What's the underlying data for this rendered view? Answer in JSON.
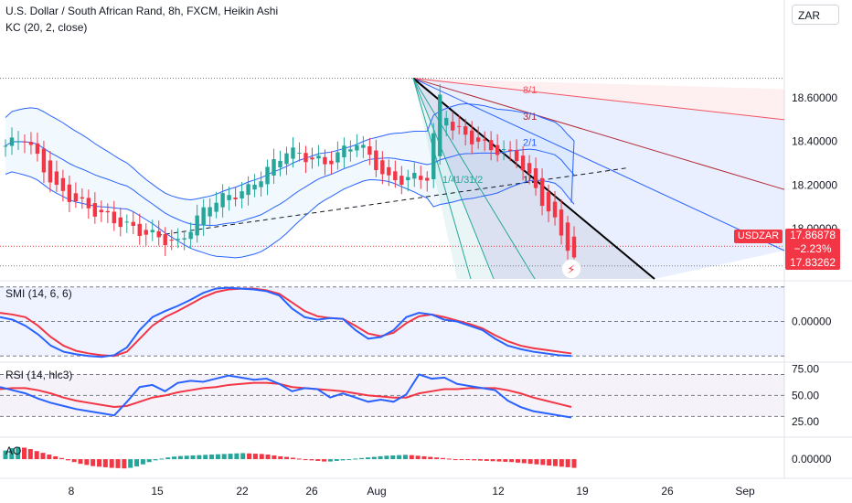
{
  "header": {
    "title": "U.S. Dollar / South African Rand, 8h, FXCM, Heikin Ashi",
    "indicator": "KC (20, 2, close)"
  },
  "currency_button": "ZAR",
  "price_tag": {
    "symbol": "USDZAR",
    "last": "17.86878",
    "change": "−2.23%",
    "low": "17.83262"
  },
  "alert_icon": "lightning-alert-icon",
  "colors": {
    "up": "#26a69a",
    "down": "#f23645",
    "channel": "#2962ff",
    "smi_signal": "#f23645",
    "smi": "#2962ff"
  },
  "chart_data": [
    {
      "type": "candlestick",
      "panel": "price",
      "y_ticks": [
        "18.60000",
        "18.40000",
        "18.20000",
        "18.00000"
      ],
      "y_values": [
        18.6,
        18.4,
        18.2,
        18.0
      ],
      "ylim": [
        17.77,
        18.86
      ],
      "x_ticks": [
        "8",
        "15",
        "22",
        "26",
        "Aug",
        "12",
        "19",
        "26",
        "Sep"
      ],
      "series": [
        {
          "name": "KC (20, 2, close)",
          "kind": "channel"
        }
      ],
      "fan_labels": [
        "8/1",
        "3/1",
        "2/1",
        "1/1",
        "1/2",
        "1/3",
        "1/4"
      ],
      "closes_start": 18.45,
      "closes_end": 17.86878
    },
    {
      "type": "line",
      "panel": "smi",
      "title": "SMI (14, 6, 6)",
      "y_ticks": [
        "0.00000"
      ],
      "y_values": [
        0
      ],
      "ylim": [
        -0.45,
        0.45
      ],
      "series": [
        {
          "name": "SMI",
          "values": [
            0.05,
            0.02,
            -0.05,
            -0.15,
            -0.28,
            -0.35,
            -0.38,
            -0.4,
            -0.41,
            -0.39,
            -0.3,
            -0.1,
            0.05,
            0.12,
            0.18,
            0.25,
            0.33,
            0.38,
            0.39,
            0.38,
            0.37,
            0.35,
            0.3,
            0.15,
            0.05,
            0.02,
            0.04,
            0.03,
            -0.1,
            -0.2,
            -0.18,
            -0.1,
            0.05,
            0.1,
            0.08,
            0.02,
            0.0,
            -0.05,
            -0.1,
            -0.2,
            -0.28,
            -0.32,
            -0.35,
            -0.37,
            -0.39,
            -0.4
          ]
        },
        {
          "name": "Signal",
          "values": [
            0.1,
            0.08,
            0.05,
            -0.05,
            -0.18,
            -0.28,
            -0.34,
            -0.37,
            -0.39,
            -0.4,
            -0.35,
            -0.2,
            -0.05,
            0.05,
            0.12,
            0.2,
            0.28,
            0.34,
            0.37,
            0.38,
            0.38,
            0.36,
            0.32,
            0.22,
            0.12,
            0.06,
            0.04,
            0.03,
            -0.05,
            -0.14,
            -0.17,
            -0.13,
            -0.02,
            0.06,
            0.08,
            0.05,
            0.01,
            -0.03,
            -0.08,
            -0.16,
            -0.23,
            -0.28,
            -0.31,
            -0.33,
            -0.35,
            -0.37
          ]
        }
      ]
    },
    {
      "type": "line",
      "panel": "rsi",
      "title": "RSI (14, hlc3)",
      "y_ticks": [
        "75.00",
        "50.00",
        "25.00"
      ],
      "y_values": [
        75,
        50,
        25
      ],
      "ylim": [
        12,
        80
      ],
      "series": [
        {
          "name": "RSI",
          "values": [
            58,
            55,
            52,
            47,
            43,
            40,
            37,
            35,
            33,
            31,
            44,
            58,
            60,
            54,
            62,
            64,
            63,
            66,
            69,
            67,
            65,
            66,
            61,
            54,
            57,
            56,
            48,
            52,
            48,
            44,
            46,
            44,
            51,
            70,
            66,
            67,
            61,
            59,
            57,
            55,
            45,
            39,
            35,
            33,
            31,
            29
          ]
        },
        {
          "name": "Signal",
          "values": [
            56,
            57,
            57,
            55,
            52,
            48,
            45,
            43,
            41,
            39,
            40,
            44,
            48,
            50,
            53,
            55,
            57,
            58,
            60,
            61,
            62,
            62,
            61,
            58,
            57,
            56,
            55,
            54,
            52,
            50,
            49,
            48,
            48,
            52,
            54,
            56,
            56,
            57,
            57,
            57,
            55,
            52,
            48,
            45,
            42,
            39
          ]
        }
      ]
    },
    {
      "type": "bar",
      "panel": "ao",
      "title": "AO",
      "y_ticks": [
        "0.00000"
      ],
      "y_values": [
        0
      ],
      "ylim": [
        -0.06,
        0.07
      ],
      "values": [
        0.03,
        0.038,
        0.042,
        0.04,
        0.035,
        0.028,
        0.022,
        0.016,
        0.01,
        0.004,
        -0.004,
        -0.01,
        -0.016,
        -0.02,
        -0.024,
        -0.026,
        -0.028,
        -0.03,
        -0.031,
        -0.032,
        -0.03,
        -0.025,
        -0.018,
        -0.01,
        -0.004,
        0.002,
        0.006,
        0.009,
        0.011,
        0.012,
        0.013,
        0.014,
        0.015,
        0.016,
        0.017,
        0.018,
        0.019,
        0.02,
        0.021,
        0.02,
        0.019,
        0.018,
        0.016,
        0.013,
        0.01,
        0.008,
        0.005,
        0.002,
        -0.002,
        -0.004,
        -0.006,
        -0.008,
        -0.008,
        -0.006,
        -0.004,
        -0.002,
        0.002,
        0.004,
        0.006,
        0.008,
        0.01,
        0.012,
        0.013,
        0.014,
        0.015,
        0.014,
        0.012,
        0.01,
        0.008,
        0.006,
        0.004,
        0.002,
        0.0,
        -0.002,
        -0.003,
        -0.004,
        -0.005,
        -0.006,
        -0.007,
        -0.008,
        -0.009,
        -0.01,
        -0.012,
        -0.014,
        -0.016,
        -0.018,
        -0.02,
        -0.022,
        -0.024,
        -0.026,
        -0.028,
        -0.03
      ]
    }
  ]
}
